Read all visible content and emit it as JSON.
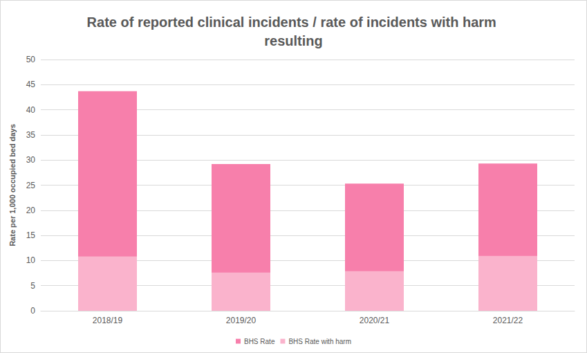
{
  "chart_data": {
    "type": "bar",
    "title": "Rate of reported clinical incidents / rate of incidents with harm resulting",
    "y_label": "Rate per 1,000 occupied bed days",
    "categories": [
      "2018/19",
      "2019/20",
      "2020/21",
      "2021/22"
    ],
    "series": [
      {
        "name": "BHS Rate",
        "color": "#f77fab",
        "values": [
          43.7,
          29.2,
          25.3,
          29.3
        ]
      },
      {
        "name": "BHS Rate with harm",
        "color": "#fab3cc",
        "values": [
          10.8,
          7.6,
          7.9,
          10.9
        ]
      }
    ],
    "ylim": [
      0,
      50
    ],
    "yticks": [
      0,
      5,
      10,
      15,
      20,
      25,
      30,
      35,
      40,
      45,
      50
    ],
    "grid": true,
    "legend": "bottom",
    "stacked": false
  }
}
